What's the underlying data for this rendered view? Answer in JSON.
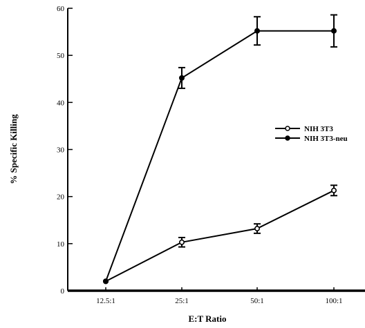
{
  "chart_data": {
    "type": "line",
    "title": "",
    "xlabel": "E:T Ratio",
    "ylabel": "% Specific Killing",
    "categories": [
      "12.5:1",
      "25:1",
      "50:1",
      "100:1"
    ],
    "ylim": [
      0,
      60
    ],
    "yticks": [
      0,
      10,
      20,
      30,
      40,
      50,
      60
    ],
    "grid": false,
    "legend": "right",
    "series": [
      {
        "name": "NIH 3T3",
        "marker": "open-circle",
        "values": [
          2,
          10.3,
          13.2,
          21.3
        ],
        "errors": [
          0.3,
          1.0,
          1.0,
          1.1
        ]
      },
      {
        "name": "NIH 3T3-neu",
        "marker": "filled-circle",
        "values": [
          2,
          45.2,
          55.2,
          55.2
        ],
        "errors": [
          0.3,
          2.2,
          3.0,
          3.4
        ]
      }
    ],
    "colors": {
      "line": "#000000",
      "background": "#ffffff"
    }
  }
}
